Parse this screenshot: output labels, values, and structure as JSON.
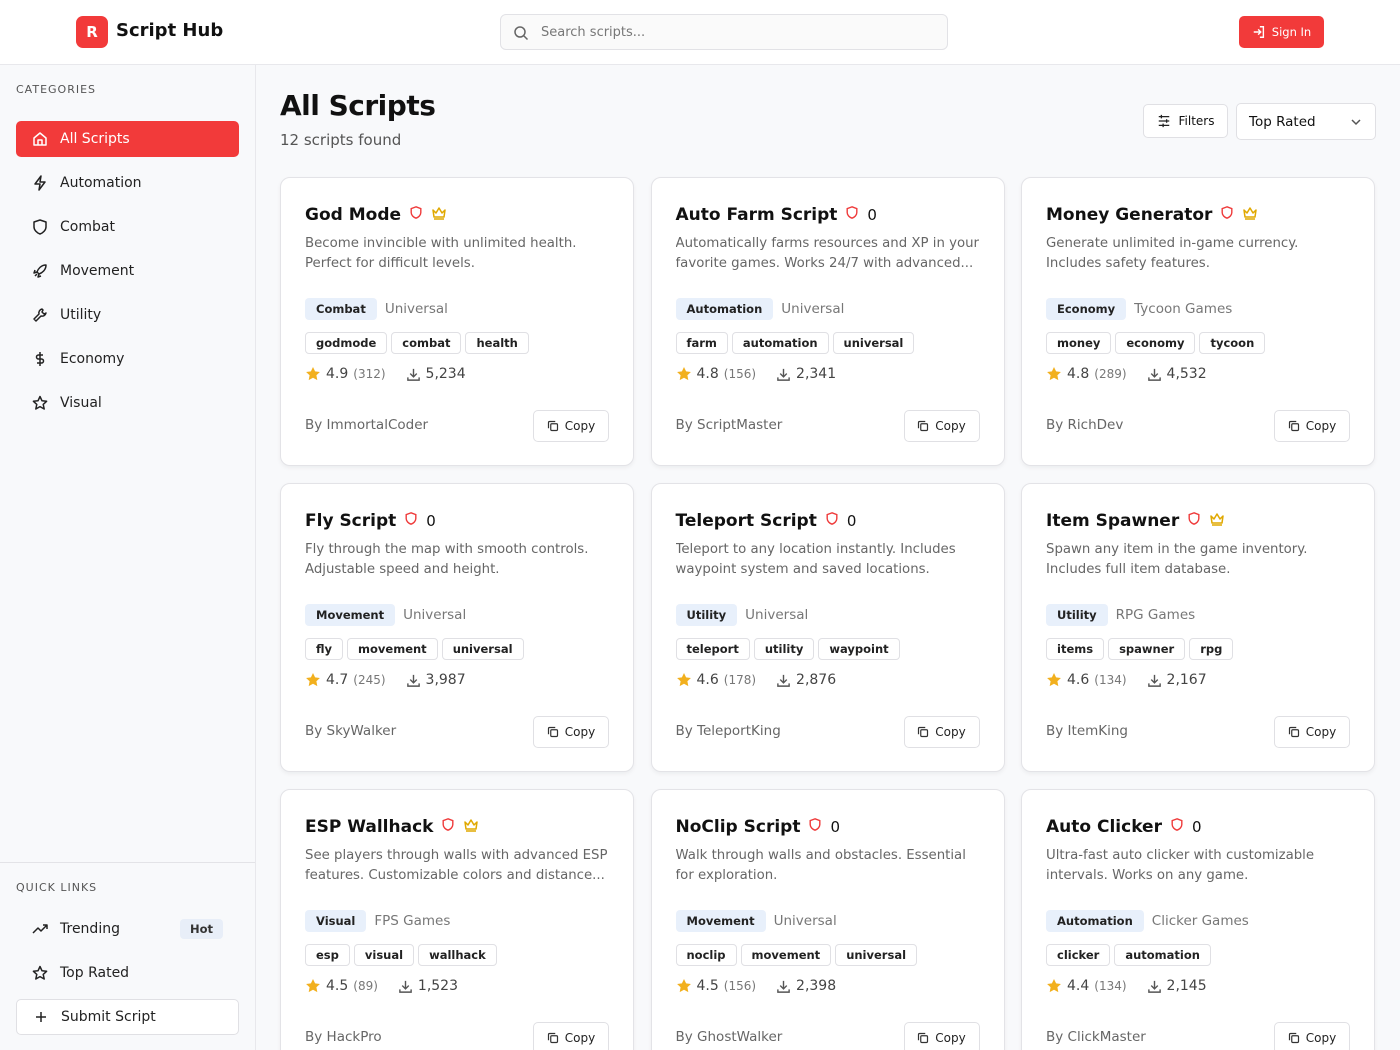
{
  "header": {
    "logo_letter": "R",
    "title": "Script Hub",
    "search_placeholder": "Search scripts...",
    "sign_in": "Sign In"
  },
  "sidebar": {
    "categories_heading": "CATEGORIES",
    "categories": [
      "All Scripts",
      "Automation",
      "Combat",
      "Movement",
      "Utility",
      "Economy",
      "Visual"
    ],
    "active_index": 0,
    "quick_links_heading": "QUICK LINKS",
    "quick_links": [
      {
        "label": "Trending",
        "badge": "Hot"
      },
      {
        "label": "Top Rated"
      }
    ],
    "submit": "Submit Script"
  },
  "main": {
    "title": "All Scripts",
    "count": "12 scripts found",
    "filters": "Filters",
    "sort": "Top Rated",
    "copy_label": "Copy",
    "cards": [
      {
        "title": "God Mode",
        "premium": true,
        "description": "Become invincible with unlimited health. Perfect for difficult levels.",
        "category": "Combat",
        "game": "Universal",
        "tags": [
          "godmode",
          "combat",
          "health"
        ],
        "rating": "4.9",
        "reviews": "(312)",
        "downloads": "5,234",
        "author": "By ImmortalCoder"
      },
      {
        "title": "Auto Farm Script",
        "badge": "0",
        "description": "Automatically farms resources and XP in your favorite games. Works 24/7 with advanced...",
        "category": "Automation",
        "game": "Universal",
        "tags": [
          "farm",
          "automation",
          "universal"
        ],
        "rating": "4.8",
        "reviews": "(156)",
        "downloads": "2,341",
        "author": "By ScriptMaster"
      },
      {
        "title": "Money Generator",
        "premium": true,
        "description": "Generate unlimited in-game currency. Includes safety features.",
        "category": "Economy",
        "game": "Tycoon Games",
        "tags": [
          "money",
          "economy",
          "tycoon"
        ],
        "rating": "4.8",
        "reviews": "(289)",
        "downloads": "4,532",
        "author": "By RichDev"
      },
      {
        "title": "Fly Script",
        "badge": "0",
        "description": "Fly through the map with smooth controls. Adjustable speed and height.",
        "category": "Movement",
        "game": "Universal",
        "tags": [
          "fly",
          "movement",
          "universal"
        ],
        "rating": "4.7",
        "reviews": "(245)",
        "downloads": "3,987",
        "author": "By SkyWalker"
      },
      {
        "title": "Teleport Script",
        "badge": "0",
        "description": "Teleport to any location instantly. Includes waypoint system and saved locations.",
        "category": "Utility",
        "game": "Universal",
        "tags": [
          "teleport",
          "utility",
          "waypoint"
        ],
        "rating": "4.6",
        "reviews": "(178)",
        "downloads": "2,876",
        "author": "By TeleportKing"
      },
      {
        "title": "Item Spawner",
        "premium": true,
        "description": "Spawn any item in the game inventory. Includes full item database.",
        "category": "Utility",
        "game": "RPG Games",
        "tags": [
          "items",
          "spawner",
          "rpg"
        ],
        "rating": "4.6",
        "reviews": "(134)",
        "downloads": "2,167",
        "author": "By ItemKing"
      },
      {
        "title": "ESP Wallhack",
        "premium": true,
        "description": "See players through walls with advanced ESP features. Customizable colors and distance...",
        "category": "Visual",
        "game": "FPS Games",
        "tags": [
          "esp",
          "visual",
          "wallhack"
        ],
        "rating": "4.5",
        "reviews": "(89)",
        "downloads": "1,523",
        "author": "By HackPro"
      },
      {
        "title": "NoClip Script",
        "badge": "0",
        "description": "Walk through walls and obstacles. Essential for exploration.",
        "category": "Movement",
        "game": "Universal",
        "tags": [
          "noclip",
          "movement",
          "universal"
        ],
        "rating": "4.5",
        "reviews": "(156)",
        "downloads": "2,398",
        "author": "By GhostWalker"
      },
      {
        "title": "Auto Clicker",
        "badge": "0",
        "description": "Ultra-fast auto clicker with customizable intervals. Works on any game.",
        "category": "Automation",
        "game": "Clicker Games",
        "tags": [
          "clicker",
          "automation"
        ],
        "rating": "4.4",
        "reviews": "(134)",
        "downloads": "2,145",
        "author": "By ClickMaster"
      }
    ]
  }
}
